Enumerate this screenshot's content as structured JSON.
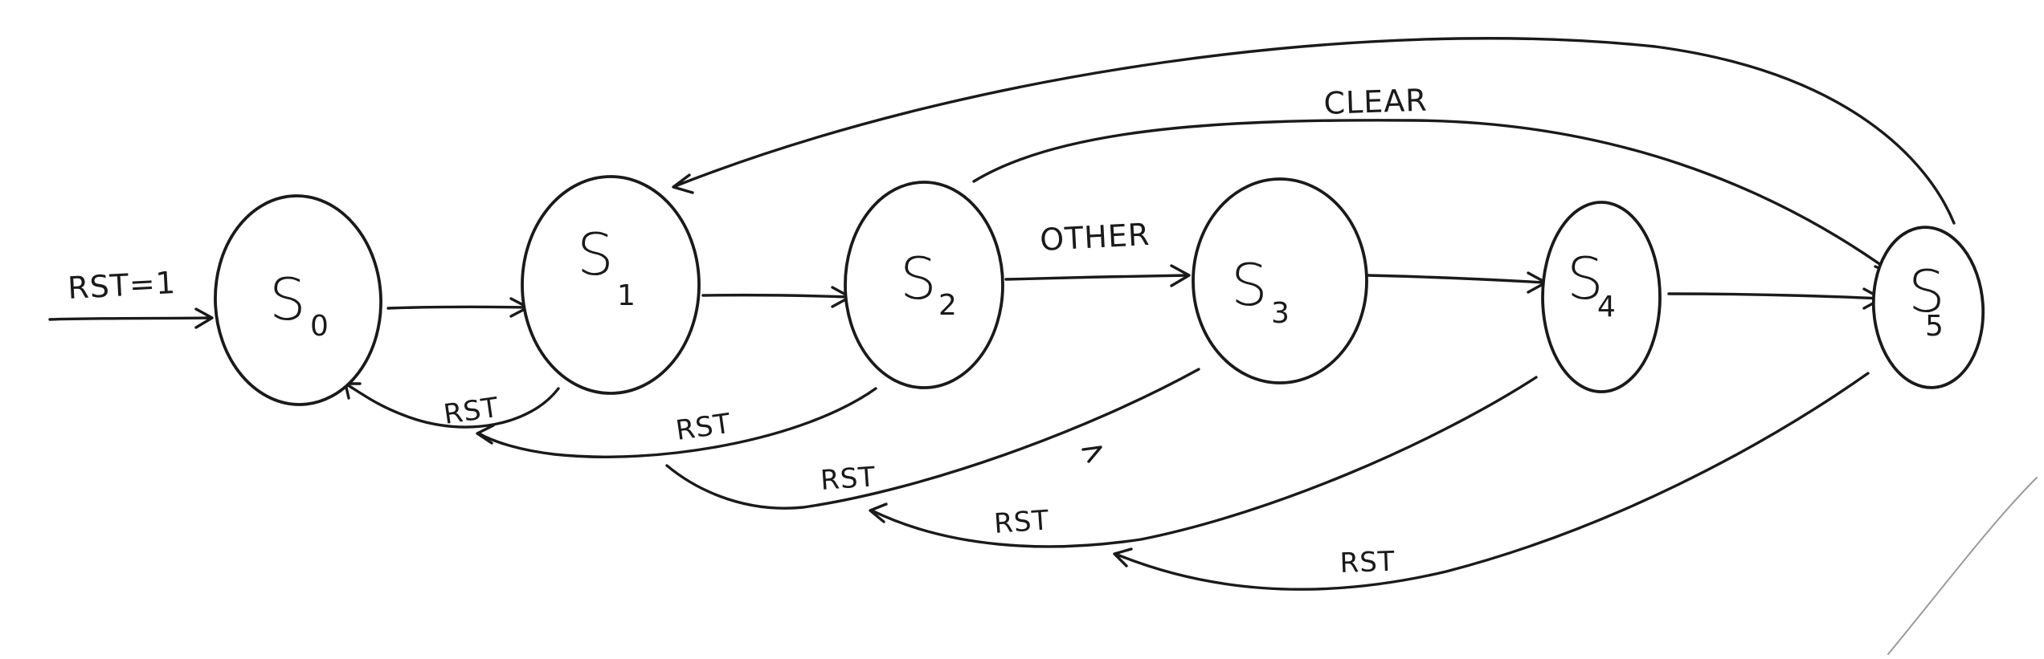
{
  "diagram": {
    "states": [
      {
        "id": "S0",
        "main": "S",
        "sub": "0"
      },
      {
        "id": "S1",
        "main": "S",
        "sub": "1"
      },
      {
        "id": "S2",
        "main": "S",
        "sub": "2"
      },
      {
        "id": "S3",
        "main": "S",
        "sub": "3"
      },
      {
        "id": "S4",
        "main": "S",
        "sub": "4"
      },
      {
        "id": "S5",
        "main": "S",
        "sub": "5"
      }
    ],
    "labels": {
      "initial": "RST=1",
      "s2_to_s3": "OTHER",
      "clear": "CLEAR",
      "rst_s1": "RST",
      "rst_s2": "RST",
      "rst_s3": "RST",
      "rst_s4": "RST",
      "rst_s5": "RST"
    }
  }
}
